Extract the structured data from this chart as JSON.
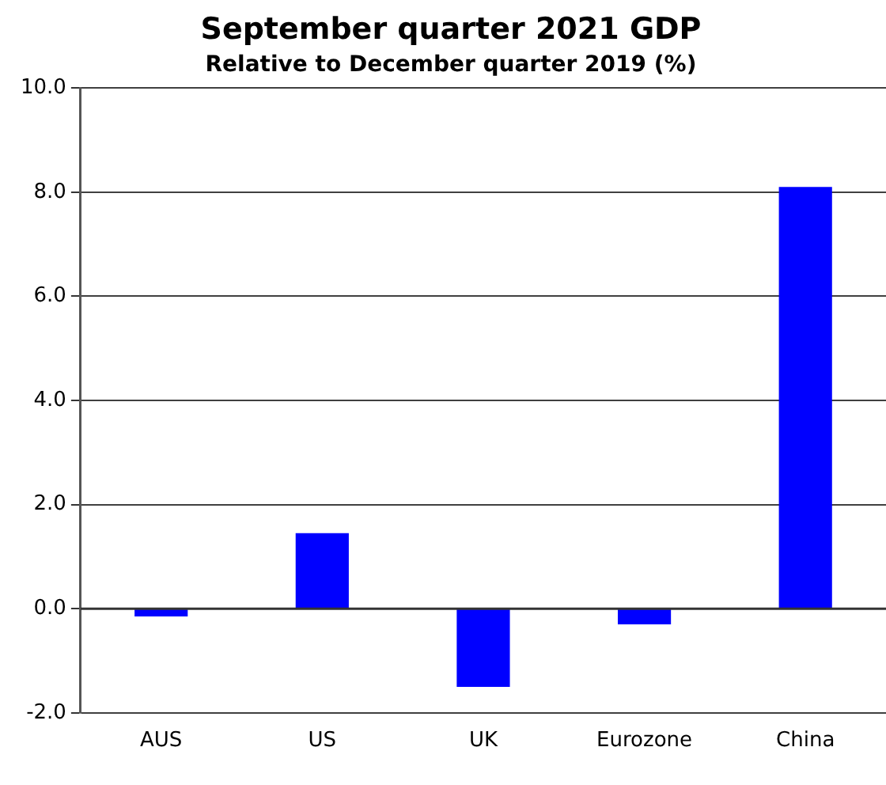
{
  "chart_data": {
    "type": "bar",
    "title": "September quarter 2021 GDP",
    "subtitle": "Relative to December quarter 2019 (%)",
    "categories": [
      "AUS",
      "US",
      "UK",
      "Eurozone",
      "China"
    ],
    "values": [
      -0.15,
      1.45,
      -1.5,
      -0.3,
      8.1
    ],
    "color": "#0000ff",
    "ylim": [
      -2,
      10
    ],
    "yticks": [
      {
        "value": -2,
        "label": "-2.0"
      },
      {
        "value": 0,
        "label": "0.0"
      },
      {
        "value": 2,
        "label": "2.0"
      },
      {
        "value": 4,
        "label": "4.0"
      },
      {
        "value": 6,
        "label": "6.0"
      },
      {
        "value": 8,
        "label": "8.0"
      },
      {
        "value": 10,
        "label": "10.0"
      }
    ],
    "grid": "y"
  }
}
